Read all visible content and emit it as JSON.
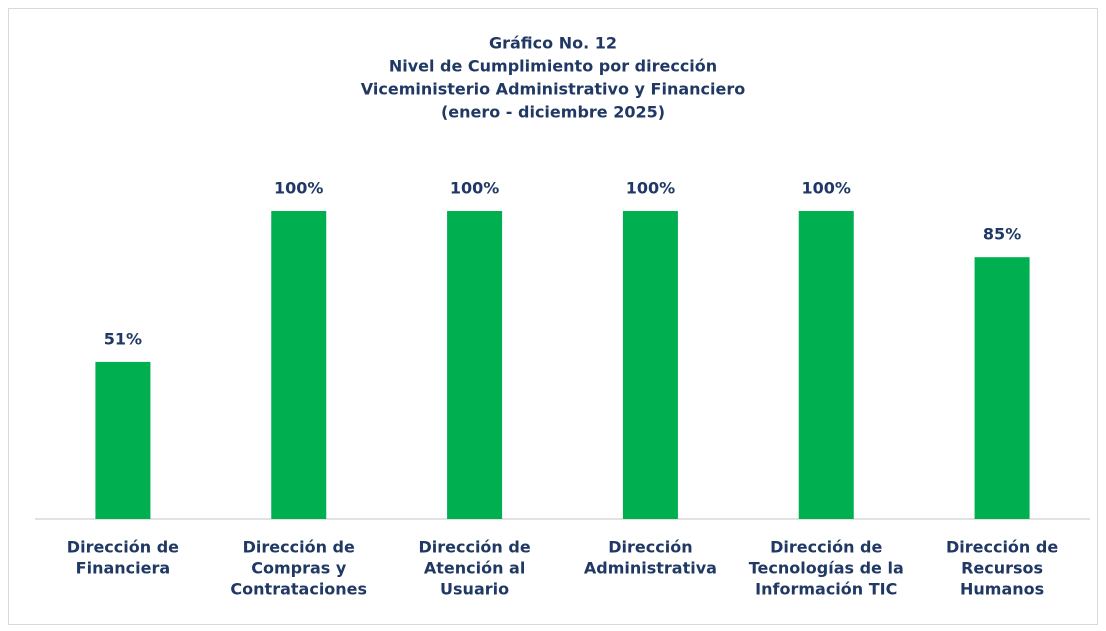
{
  "chart_data": {
    "type": "bar",
    "title": "Gráfico No. 12",
    "subtitle": [
      "Nivel de Cumplimiento por dirección",
      "Viceministerio Administrativo y Financiero",
      "(enero - diciembre 2025)"
    ],
    "categories": [
      [
        "Dirección de",
        "Financiera"
      ],
      [
        "Dirección de",
        "Compras y",
        "Contrataciones"
      ],
      [
        "Dirección de",
        "Atención al",
        "Usuario"
      ],
      [
        "Dirección",
        "Administrativa"
      ],
      [
        "Dirección de",
        "Tecnologías de la",
        "Información  TIC"
      ],
      [
        "Dirección de",
        "Recursos",
        "Humanos"
      ]
    ],
    "values": [
      51,
      100,
      100,
      100,
      100,
      85
    ],
    "value_labels": [
      "51%",
      "100%",
      "100%",
      "100%",
      "100%",
      "85%"
    ],
    "color": "#00b050",
    "ylim": [
      0,
      100
    ]
  }
}
